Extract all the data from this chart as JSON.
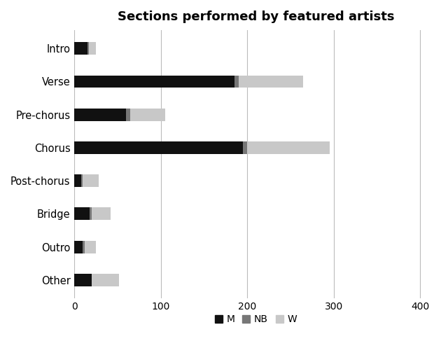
{
  "categories": [
    "Intro",
    "Verse",
    "Pre-chorus",
    "Chorus",
    "Post-chorus",
    "Bridge",
    "Outro",
    "Other"
  ],
  "M": [
    15,
    185,
    60,
    195,
    8,
    18,
    10,
    20
  ],
  "NB": [
    2,
    5,
    5,
    5,
    2,
    2,
    2,
    0
  ],
  "W": [
    8,
    75,
    40,
    95,
    18,
    22,
    13,
    32
  ],
  "colors": {
    "M": "#111111",
    "NB": "#777777",
    "W": "#c8c8c8"
  },
  "title": "Sections performed by featured artists",
  "title_fontsize": 13,
  "xlim": [
    0,
    420
  ],
  "xticks": [
    0,
    100,
    200,
    300,
    400
  ],
  "background_color": "#ffffff",
  "bar_height": 0.38,
  "grid_color": "#bbbbbb",
  "ylabel_fontsize": 10.5
}
